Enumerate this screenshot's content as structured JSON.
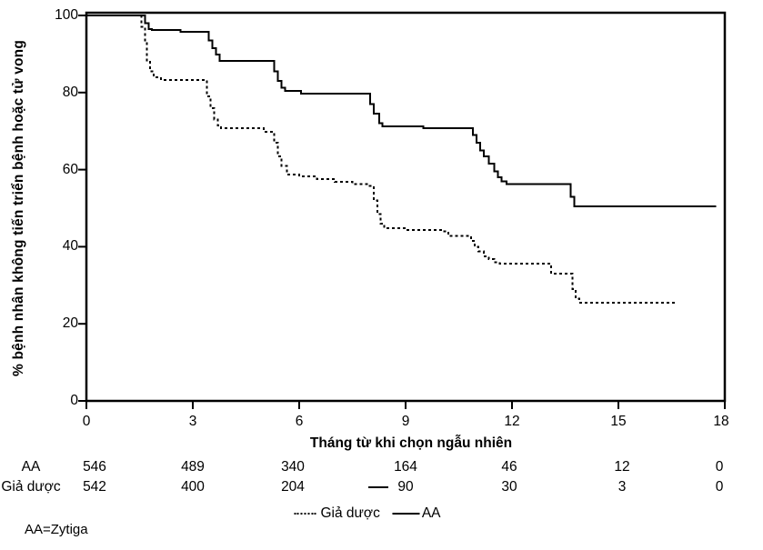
{
  "figure": {
    "y_axis_label": "% bệnh nhân không tiến triển bệnh hoặc tử vong",
    "x_axis_label": "Tháng từ khi chọn ngẫu nhiên",
    "footnote": "AA=Zytiga"
  },
  "axes": {
    "y_ticks": [
      "100",
      "80",
      "60",
      "40",
      "20",
      "0"
    ],
    "x_ticks": [
      "0",
      "3",
      "6",
      "9",
      "12",
      "15",
      "18"
    ]
  },
  "at_risk": {
    "rows": [
      {
        "label": "AA",
        "values": [
          "546",
          "489",
          "340",
          "164",
          "46",
          "12",
          "0"
        ]
      },
      {
        "label": "Giả dược",
        "values": [
          "542",
          "400",
          "204",
          "90",
          "30",
          "3",
          "0"
        ]
      }
    ]
  },
  "legend": [
    {
      "label": "Giả dược",
      "style": "dashed"
    },
    {
      "label": "AA",
      "style": "solid"
    }
  ],
  "colors": {
    "line": "#000000",
    "background": "#ffffff",
    "text": "#000000"
  },
  "chart_data": {
    "type": "line",
    "subtype": "kaplan-meier-step",
    "title": "",
    "xlabel": "Tháng từ khi chọn ngẫu nhiên",
    "ylabel": "% bệnh nhân không tiến triển bệnh hoặc tử vong",
    "xlim": [
      0,
      18
    ],
    "ylim": [
      0,
      100
    ],
    "x_tick_values": [
      0,
      3,
      6,
      9,
      12,
      15,
      18
    ],
    "y_tick_values": [
      0,
      20,
      40,
      60,
      80,
      100
    ],
    "grid": false,
    "legend_position": "bottom",
    "series": [
      {
        "name": "AA",
        "line": "solid",
        "points": [
          [
            0,
            100
          ],
          [
            1.55,
            100
          ],
          [
            1.65,
            98
          ],
          [
            1.75,
            96.5
          ],
          [
            1.85,
            96.2
          ],
          [
            2.6,
            96.2
          ],
          [
            2.65,
            95.8
          ],
          [
            3.35,
            95.8
          ],
          [
            3.45,
            93.5
          ],
          [
            3.55,
            91.5
          ],
          [
            3.65,
            89.8
          ],
          [
            3.75,
            88.2
          ],
          [
            5.2,
            88.2
          ],
          [
            5.3,
            85.5
          ],
          [
            5.4,
            83
          ],
          [
            5.5,
            81.2
          ],
          [
            5.6,
            80.4
          ],
          [
            6.05,
            79.7
          ],
          [
            7.9,
            79.7
          ],
          [
            8.0,
            77
          ],
          [
            8.1,
            74.5
          ],
          [
            8.25,
            72
          ],
          [
            8.35,
            71.2
          ],
          [
            9.5,
            70.8
          ],
          [
            10.75,
            70.8
          ],
          [
            10.9,
            69
          ],
          [
            11.0,
            67
          ],
          [
            11.1,
            65
          ],
          [
            11.2,
            63.5
          ],
          [
            11.35,
            61.5
          ],
          [
            11.5,
            59.5
          ],
          [
            11.6,
            58
          ],
          [
            11.7,
            57
          ],
          [
            11.85,
            56.2
          ],
          [
            13.6,
            56.2
          ],
          [
            13.65,
            53
          ],
          [
            13.75,
            50.5
          ],
          [
            17.75,
            50.5
          ]
        ]
      },
      {
        "name": "Giả dược",
        "line": "dashed",
        "points": [
          [
            0,
            100
          ],
          [
            1.45,
            100
          ],
          [
            1.55,
            97
          ],
          [
            1.65,
            93
          ],
          [
            1.7,
            88
          ],
          [
            1.8,
            85.5
          ],
          [
            1.9,
            84
          ],
          [
            2.1,
            83.2
          ],
          [
            3.3,
            83.2
          ],
          [
            3.4,
            79
          ],
          [
            3.5,
            76
          ],
          [
            3.6,
            73
          ],
          [
            3.7,
            71.5
          ],
          [
            3.8,
            70.8
          ],
          [
            4.9,
            70.8
          ],
          [
            5.0,
            69.8
          ],
          [
            5.2,
            69.8
          ],
          [
            5.3,
            67
          ],
          [
            5.4,
            63.5
          ],
          [
            5.5,
            61
          ],
          [
            5.65,
            58.7
          ],
          [
            6.0,
            58.2
          ],
          [
            6.5,
            57.5
          ],
          [
            7.0,
            56.8
          ],
          [
            7.5,
            56.2
          ],
          [
            7.95,
            55.8
          ],
          [
            8.1,
            52
          ],
          [
            8.2,
            48.5
          ],
          [
            8.3,
            46
          ],
          [
            8.4,
            44.8
          ],
          [
            9.0,
            44.3
          ],
          [
            10.0,
            44.0
          ],
          [
            10.2,
            42.8
          ],
          [
            10.75,
            42.8
          ],
          [
            10.85,
            41.5
          ],
          [
            10.95,
            40
          ],
          [
            11.05,
            38.8
          ],
          [
            11.2,
            37.5
          ],
          [
            11.35,
            36.8
          ],
          [
            11.5,
            36.0
          ],
          [
            11.65,
            35.6
          ],
          [
            13.0,
            35.6
          ],
          [
            13.1,
            33.0
          ],
          [
            13.6,
            33.0
          ],
          [
            13.7,
            29
          ],
          [
            13.8,
            26.5
          ],
          [
            13.9,
            25.5
          ],
          [
            16.6,
            25.5
          ]
        ]
      }
    ]
  }
}
